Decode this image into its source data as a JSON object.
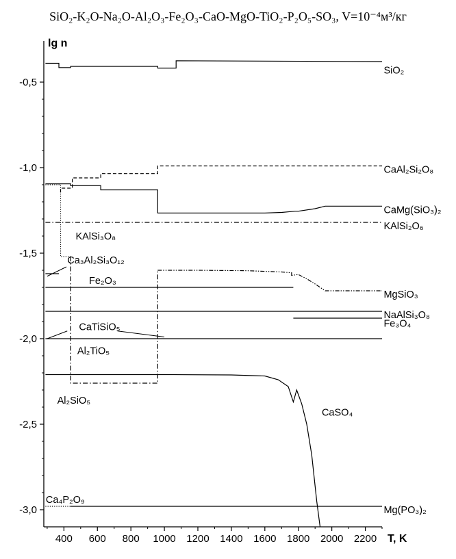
{
  "title": "SiO₂-K₂O-Na₂O-Al₂O₃-Fe₂O₃-CaO-MgO-TiO₂-P₂O₅-SO₃,  V=10⁻⁴м³/кг",
  "chart_data": {
    "type": "line",
    "title": "SiO₂-K₂O-Na₂O-Al₂O₃-Fe₂O₃-CaO-MgO-TiO₂-P₂O₅-SO₃,  V=10⁻⁴м³/кг",
    "xlabel": "T, K",
    "ylabel": "lg n",
    "xlim": [
      280,
      2300
    ],
    "ylim": [
      -3.1,
      -0.3
    ],
    "grid": false,
    "x_ticks": [
      400,
      600,
      800,
      1000,
      1200,
      1400,
      1600,
      1800,
      2000,
      2200
    ],
    "x_tick_labels": [
      "400",
      "600",
      "800",
      "1000",
      "1200",
      "1400",
      "1600",
      "1800",
      "2000",
      "2200"
    ],
    "y_ticks": [
      -0.5,
      -1.0,
      -1.5,
      -2.0,
      -2.5,
      -3.0
    ],
    "y_tick_labels": [
      "-0,5",
      "-1,0",
      "-1,5",
      "-2,0",
      "-2,5",
      "-3,0"
    ],
    "series": [
      {
        "name": "SiO₂",
        "style": "solid",
        "x": [
          290,
          370,
          370,
          440,
          440,
          960,
          960,
          1070,
          1070,
          2300
        ],
        "y": [
          -0.39,
          -0.39,
          -0.415,
          -0.415,
          -0.408,
          -0.408,
          -0.418,
          -0.418,
          -0.375,
          -0.38
        ]
      },
      {
        "name": "CaAl₂Si₂O₈",
        "style": "dashed",
        "x": [
          380,
          380,
          450,
          450,
          620,
          620,
          960,
          960,
          2300
        ],
        "y": [
          -1.145,
          -1.12,
          -1.12,
          -1.06,
          -1.06,
          -1.035,
          -1.035,
          -0.99,
          -0.99
        ]
      },
      {
        "name": "CaMg(SiO₃)₂",
        "style": "solid",
        "x": [
          290,
          440,
          440,
          620,
          620,
          960,
          960,
          1400,
          1600,
          1700,
          1780,
          1800,
          1900,
          1960,
          2300
        ],
        "y": [
          -1.095,
          -1.095,
          -1.105,
          -1.105,
          -1.13,
          -1.13,
          -1.265,
          -1.265,
          -1.265,
          -1.262,
          -1.255,
          -1.255,
          -1.24,
          -1.225,
          -1.225
        ]
      },
      {
        "name": "KAlSi₂O₆",
        "style": "dash-dot",
        "x": [
          290,
          2300
        ],
        "y": [
          -1.32,
          -1.32
        ]
      },
      {
        "name": "KAlSi₃O₈",
        "style": "dotted",
        "x": [
          290,
          380,
          380,
          440
        ],
        "y": [
          -1.1,
          -1.1,
          -1.52,
          -1.52
        ]
      },
      {
        "name": "Ca₃Al₂Si₃O₁₂",
        "style": "solid",
        "x": [
          290,
          370
        ],
        "y": [
          -1.62,
          -1.62
        ]
      },
      {
        "name": "MgSiO₃",
        "style": "dash-dot-dot",
        "x": [
          960,
          1200,
          1500,
          1700,
          1760,
          1760,
          1800,
          1850,
          1900,
          1960,
          2300
        ],
        "y": [
          -1.6,
          -1.6,
          -1.603,
          -1.61,
          -1.615,
          -1.63,
          -1.625,
          -1.65,
          -1.68,
          -1.72,
          -1.72
        ]
      },
      {
        "name": "Fe₂O₃",
        "style": "solid",
        "x": [
          290,
          1770
        ],
        "y": [
          -1.7,
          -1.7
        ]
      },
      {
        "name": "NaAlSi₃O₈",
        "style": "solid",
        "x": [
          290,
          2300
        ],
        "y": [
          -1.84,
          -1.84
        ]
      },
      {
        "name": "Fe₃O₄",
        "style": "solid",
        "x": [
          1770,
          2300
        ],
        "y": [
          -1.88,
          -1.88
        ]
      },
      {
        "name": "Al₂TiO₅",
        "style": "solid",
        "x": [
          290,
          2300
        ],
        "y": [
          -2.0,
          -2.0
        ]
      },
      {
        "name": "Al₂SiO₅",
        "style": "dash-dot",
        "x": [
          440,
          440,
          960,
          960
        ],
        "y": [
          -1.52,
          -2.26,
          -2.26,
          -1.6
        ]
      },
      {
        "name": "CaSO₄",
        "style": "solid",
        "x": [
          290,
          1000,
          1400,
          1600,
          1680,
          1740,
          1770,
          1790,
          1820,
          1850,
          1880,
          1910,
          1930
        ],
        "y": [
          -2.21,
          -2.21,
          -2.212,
          -2.218,
          -2.24,
          -2.28,
          -2.37,
          -2.3,
          -2.38,
          -2.5,
          -2.68,
          -2.95,
          -3.1
        ]
      },
      {
        "name": "Mg(PO₃)₂",
        "style": "solid",
        "x": [
          440,
          2300
        ],
        "y": [
          -2.98,
          -2.98
        ]
      },
      {
        "name": "Ca₄P₂O₉",
        "style": "dotted",
        "x": [
          290,
          440
        ],
        "y": [
          -2.98,
          -2.98
        ]
      }
    ],
    "annotations": [
      {
        "text": "SiO₂",
        "x": 2310,
        "y": -0.45,
        "anchor": "start"
      },
      {
        "text": "CaAl₂Si₂O₈",
        "x": 2310,
        "y": -1.03,
        "anchor": "start"
      },
      {
        "text": "CaMg(SiO₃)₂",
        "x": 2310,
        "y": -1.265,
        "anchor": "start"
      },
      {
        "text": "KAlSi₂O₆",
        "x": 2310,
        "y": -1.36,
        "anchor": "start"
      },
      {
        "text": "KAlSi₃O₈",
        "x": 470,
        "y": -1.42,
        "anchor": "start"
      },
      {
        "text": "Ca₃Al₂Si₃O₁₂",
        "x": 420,
        "y": -1.56,
        "anchor": "start"
      },
      {
        "text": "Fe₂O₃",
        "x": 550,
        "y": -1.68,
        "anchor": "start"
      },
      {
        "text": "MgSiO₃",
        "x": 2310,
        "y": -1.76,
        "anchor": "start"
      },
      {
        "text": "NaAlSi₃O₈",
        "x": 2310,
        "y": -1.88,
        "anchor": "start"
      },
      {
        "text": "Fe₃O₄",
        "x": 2310,
        "y": -1.93,
        "anchor": "start"
      },
      {
        "text": "CaTiSiO₅",
        "x": 490,
        "y": -1.95,
        "anchor": "start"
      },
      {
        "text": "Al₂TiO₅",
        "x": 480,
        "y": -2.09,
        "anchor": "start"
      },
      {
        "text": "Al₂SiO₅",
        "x": 360,
        "y": -2.38,
        "anchor": "start"
      },
      {
        "text": "CaSO₄",
        "x": 1940,
        "y": -2.45,
        "anchor": "start"
      },
      {
        "text": "Ca₄P₂O₉",
        "x": 292,
        "y": -2.96,
        "anchor": "start"
      },
      {
        "text": "Mg(PO₃)₂",
        "x": 2310,
        "y": -3.02,
        "anchor": "start"
      }
    ],
    "leader_lines": [
      {
        "x1": 300,
        "y1": -1.635,
        "x2": 415,
        "y2": -1.58
      },
      {
        "x1": 300,
        "y1": -2.0,
        "x2": 420,
        "y2": -1.955
      },
      {
        "x1": 720,
        "y1": -1.955,
        "x2": 1000,
        "y2": -1.99
      }
    ]
  }
}
